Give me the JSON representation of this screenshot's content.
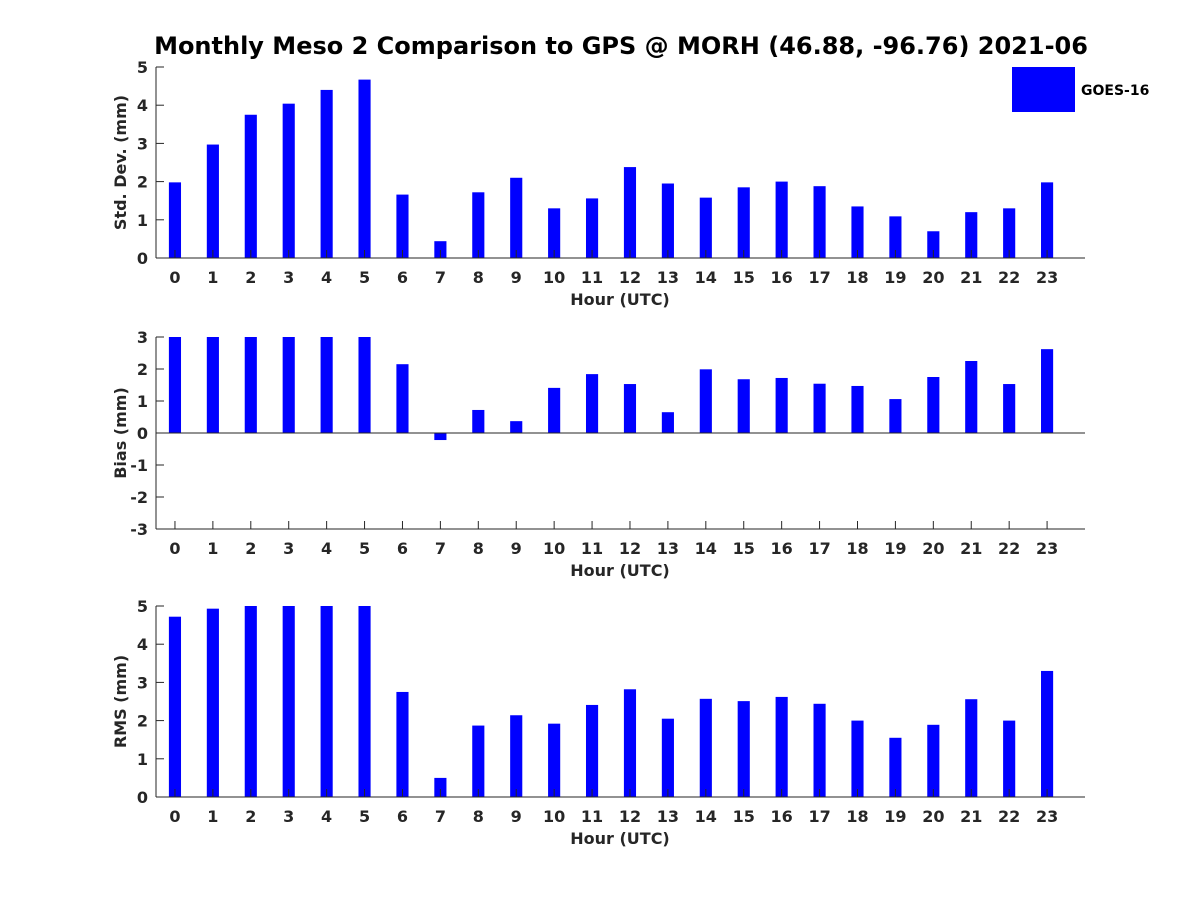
{
  "title": "Monthly Meso 2 Comparison to GPS @ MORH (46.88, -96.76) 2021-06",
  "legend": {
    "label": "GOES-16",
    "color": "#0000ff",
    "position": "top-right"
  },
  "chart_data": [
    {
      "type": "bar",
      "xlabel": "Hour (UTC)",
      "ylabel": "Std. Dev. (mm)",
      "ylim": [
        0,
        5
      ],
      "yticks": [
        0,
        1,
        2,
        3,
        4,
        5
      ],
      "categories": [
        "0",
        "1",
        "2",
        "3",
        "4",
        "5",
        "6",
        "7",
        "8",
        "9",
        "10",
        "11",
        "12",
        "13",
        "14",
        "15",
        "16",
        "17",
        "18",
        "19",
        "20",
        "21",
        "22",
        "23"
      ],
      "series": [
        {
          "name": "GOES-16",
          "color": "#0000ff",
          "values": [
            1.98,
            2.97,
            3.75,
            4.04,
            4.4,
            4.67,
            1.66,
            0.44,
            1.72,
            2.1,
            1.3,
            1.56,
            2.38,
            1.95,
            1.58,
            1.85,
            2.0,
            1.88,
            1.35,
            1.09,
            0.7,
            1.2,
            1.3,
            1.98
          ]
        }
      ]
    },
    {
      "type": "bar",
      "xlabel": "Hour (UTC)",
      "ylabel": "Bias (mm)",
      "ylim": [
        -3,
        3
      ],
      "yticks": [
        -3,
        -2,
        -1,
        0,
        1,
        2,
        3
      ],
      "categories": [
        "0",
        "1",
        "2",
        "3",
        "4",
        "5",
        "6",
        "7",
        "8",
        "9",
        "10",
        "11",
        "12",
        "13",
        "14",
        "15",
        "16",
        "17",
        "18",
        "19",
        "20",
        "21",
        "22",
        "23"
      ],
      "series": [
        {
          "name": "GOES-16",
          "color": "#0000ff",
          "values": [
            3.0,
            3.0,
            3.0,
            3.0,
            3.0,
            3.0,
            2.15,
            -0.22,
            0.72,
            0.37,
            1.41,
            1.84,
            1.53,
            0.65,
            1.99,
            1.68,
            1.72,
            1.54,
            1.47,
            1.06,
            1.75,
            2.25,
            1.53,
            2.62
          ]
        }
      ]
    },
    {
      "type": "bar",
      "xlabel": "Hour (UTC)",
      "ylabel": "RMS (mm)",
      "ylim": [
        0,
        5
      ],
      "yticks": [
        0,
        1,
        2,
        3,
        4,
        5
      ],
      "categories": [
        "0",
        "1",
        "2",
        "3",
        "4",
        "5",
        "6",
        "7",
        "8",
        "9",
        "10",
        "11",
        "12",
        "13",
        "14",
        "15",
        "16",
        "17",
        "18",
        "19",
        "20",
        "21",
        "22",
        "23"
      ],
      "series": [
        {
          "name": "GOES-16",
          "color": "#0000ff",
          "values": [
            4.72,
            4.93,
            5.0,
            5.0,
            5.0,
            5.0,
            2.75,
            0.5,
            1.87,
            2.14,
            1.92,
            2.41,
            2.82,
            2.05,
            2.57,
            2.51,
            2.62,
            2.44,
            2.0,
            1.55,
            1.89,
            2.56,
            2.0,
            3.3
          ]
        }
      ]
    }
  ]
}
